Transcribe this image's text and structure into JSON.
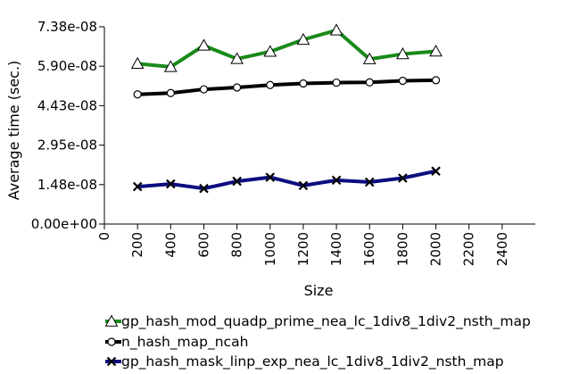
{
  "chart_data": {
    "type": "line",
    "title": "",
    "xlabel": "Size",
    "ylabel": "Average time (sec.)",
    "xlim": [
      0,
      2600
    ],
    "ylim": [
      0,
      7.38e-08
    ],
    "x_ticks": [
      0,
      200,
      400,
      600,
      800,
      1000,
      1200,
      1400,
      1600,
      1800,
      2000,
      2200,
      2400
    ],
    "x_tick_labels": [
      "0",
      "200",
      "400",
      "600",
      "800",
      "1000",
      "1200",
      "1400",
      "1600",
      "1800",
      "2000",
      "2200",
      "2400"
    ],
    "y_ticks": [
      0,
      1.476e-08,
      2.952e-08,
      4.428e-08,
      5.904e-08,
      7.38e-08
    ],
    "y_tick_labels": [
      "0.00e+00",
      "1.48e-08",
      "2.95e-08",
      "4.43e-08",
      "5.90e-08",
      "7.38e-08"
    ],
    "grid": false,
    "legend_position": "bottom",
    "x": [
      200,
      400,
      600,
      800,
      1000,
      1200,
      1400,
      1600,
      1800,
      2000
    ],
    "series": [
      {
        "name": "gp_hash_mod_quadp_prime_nea_lc_1div8_1div2_nsth_map",
        "color": "#1a8a1a",
        "marker": "triangle",
        "values": [
          6e-08,
          5.88e-08,
          6.68e-08,
          6.18e-08,
          6.45e-08,
          6.9e-08,
          7.25e-08,
          6.17e-08,
          6.36e-08,
          6.46e-08
        ]
      },
      {
        "name": "n_hash_map_ncah",
        "color": "#000000",
        "marker": "circle",
        "values": [
          4.85e-08,
          4.9e-08,
          5.04e-08,
          5.11e-08,
          5.2e-08,
          5.26e-08,
          5.29e-08,
          5.3e-08,
          5.36e-08,
          5.38e-08
        ]
      },
      {
        "name": "gp_hash_mask_linp_exp_nea_lc_1div8_1div2_nsth_map",
        "color": "#0d0d80",
        "marker": "x",
        "values": [
          1.4e-08,
          1.5e-08,
          1.33e-08,
          1.6e-08,
          1.75e-08,
          1.44e-08,
          1.64e-08,
          1.57e-08,
          1.72e-08,
          1.98e-08
        ]
      }
    ]
  }
}
